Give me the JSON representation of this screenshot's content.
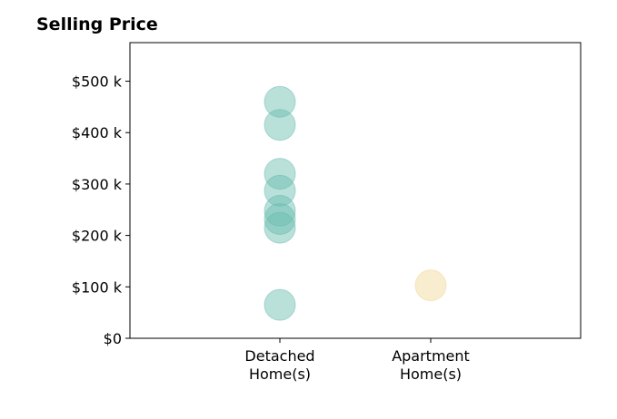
{
  "chart_data": {
    "type": "scatter",
    "title": "Selling Price",
    "xlabel": "",
    "ylabel": "",
    "categories": [
      "Detached\nHome(s)",
      "Apartment\nHome(s)"
    ],
    "ylim": [
      0,
      575000
    ],
    "yticks": [
      0,
      100000,
      200000,
      300000,
      400000,
      500000
    ],
    "ytick_labels": [
      "$0",
      "$100 k",
      "$200 k",
      "$300 k",
      "$400 k",
      "$500 k"
    ],
    "grid": false,
    "series": [
      {
        "category": "Detached\nHome(s)",
        "color": "#66bbae",
        "values": [
          460000,
          415000,
          320000,
          287000,
          248000,
          232000,
          215000,
          65000
        ]
      },
      {
        "category": "Apartment\nHome(s)",
        "color": "#f2d694",
        "values": [
          103000
        ]
      }
    ]
  }
}
